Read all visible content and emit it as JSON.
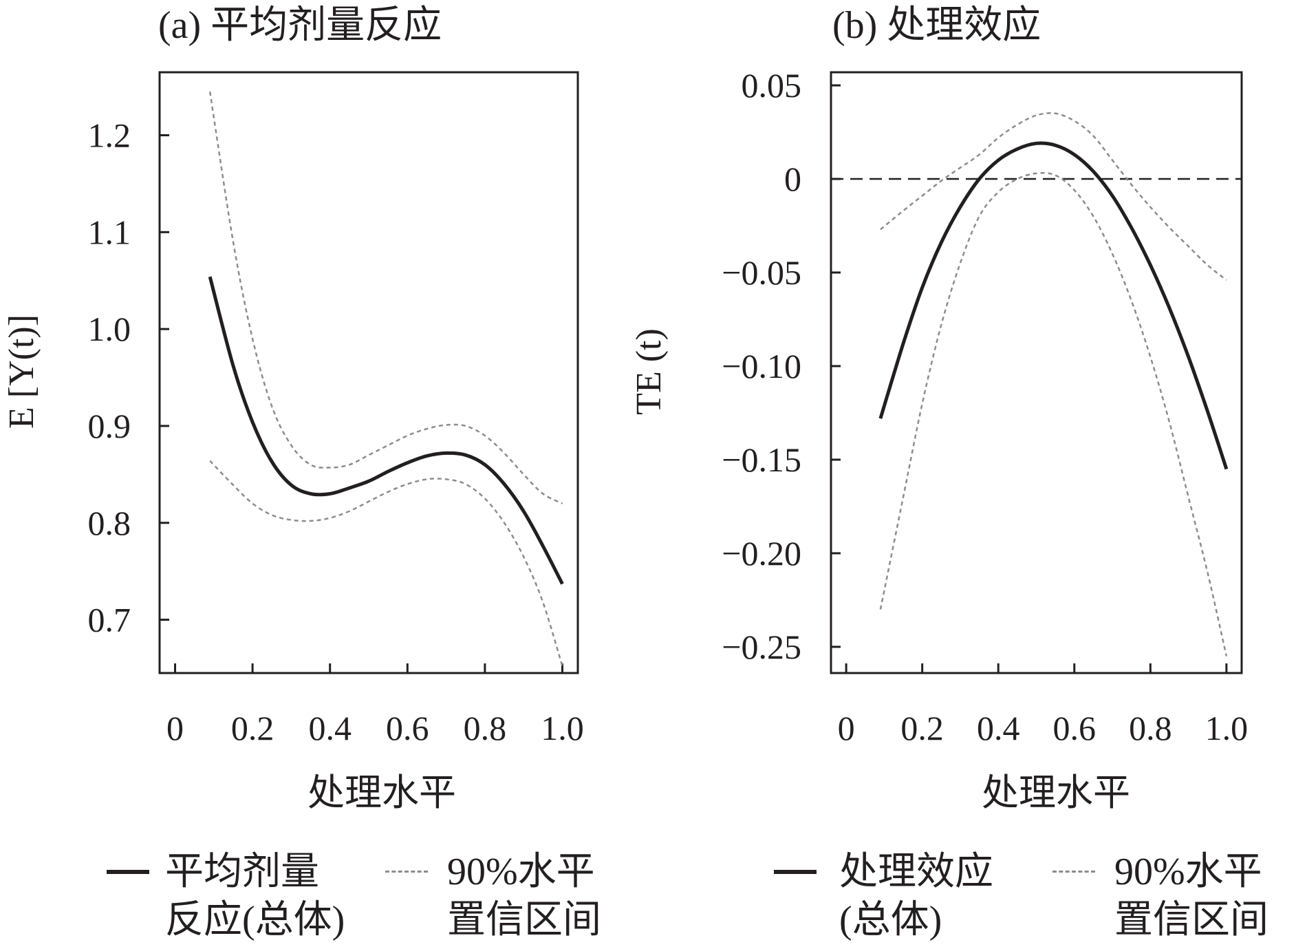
{
  "chart_data": [
    {
      "type": "line",
      "title": "(a) 平均剂量反应",
      "xlabel": "处理水平",
      "ylabel": "E [Y(t)]",
      "xlim": [
        -0.04,
        1.04
      ],
      "ylim": [
        0.645,
        1.265
      ],
      "xticks": [
        0,
        0.2,
        0.4,
        0.6,
        0.8,
        1.0
      ],
      "xtick_labels": [
        "0",
        "0.2",
        "0.4",
        "0.6",
        "0.8",
        "1.0"
      ],
      "yticks": [
        0.7,
        0.8,
        0.9,
        1.0,
        1.1,
        1.2
      ],
      "ytick_labels": [
        "0.7",
        "0.8",
        "0.9",
        "1.0",
        "1.1",
        "1.2"
      ],
      "grid": false,
      "legend_position": "bottom",
      "x": [
        0.09,
        0.15,
        0.2,
        0.25,
        0.3,
        0.35,
        0.4,
        0.45,
        0.5,
        0.55,
        0.6,
        0.65,
        0.7,
        0.75,
        0.8,
        0.85,
        0.9,
        0.95,
        1.0
      ],
      "series": [
        {
          "name": "平均剂量反应(总体)",
          "style": "solid",
          "values": [
            1.054,
            0.962,
            0.904,
            0.863,
            0.839,
            0.83,
            0.83,
            0.836,
            0.843,
            0.853,
            0.862,
            0.869,
            0.872,
            0.87,
            0.86,
            0.84,
            0.812,
            0.776,
            0.737
          ]
        },
        {
          "name": "90%水平置信区间",
          "style": "dashed",
          "values": [
            1.245,
            1.09,
            0.99,
            0.92,
            0.88,
            0.86,
            0.857,
            0.86,
            0.87,
            0.88,
            0.89,
            0.897,
            0.901,
            0.9,
            0.89,
            0.872,
            0.85,
            0.83,
            0.82
          ]
        },
        {
          "name": "90%水平置信区间",
          "style": "dashed",
          "values": [
            0.864,
            0.839,
            0.82,
            0.808,
            0.803,
            0.802,
            0.805,
            0.812,
            0.822,
            0.832,
            0.84,
            0.845,
            0.845,
            0.84,
            0.825,
            0.8,
            0.765,
            0.718,
            0.652
          ]
        }
      ]
    },
    {
      "type": "line",
      "title": "(b) 处理效应",
      "xlabel": "处理水平",
      "ylabel": "TE (t)",
      "xlim": [
        -0.04,
        1.04
      ],
      "ylim": [
        -0.264,
        0.057
      ],
      "xticks": [
        0,
        0.2,
        0.4,
        0.6,
        0.8,
        1.0
      ],
      "xtick_labels": [
        "0",
        "0.2",
        "0.4",
        "0.6",
        "0.8",
        "1.0"
      ],
      "yticks": [
        0.05,
        0,
        -0.05,
        -0.1,
        -0.15,
        -0.2,
        -0.25
      ],
      "ytick_labels": [
        "0.05",
        "0",
        "−0.05",
        "−0.10",
        "−0.15",
        "−0.20",
        "−0.25"
      ],
      "reference_line": 0,
      "grid": false,
      "legend_position": "bottom",
      "x": [
        0.09,
        0.15,
        0.2,
        0.25,
        0.3,
        0.35,
        0.4,
        0.45,
        0.5,
        0.55,
        0.6,
        0.65,
        0.7,
        0.75,
        0.8,
        0.85,
        0.9,
        0.95,
        1.0
      ],
      "series": [
        {
          "name": "处理效应(总体)",
          "style": "solid",
          "values": [
            -0.128,
            -0.088,
            -0.058,
            -0.034,
            -0.015,
            0.0,
            0.01,
            0.016,
            0.019,
            0.018,
            0.013,
            0.004,
            -0.009,
            -0.026,
            -0.046,
            -0.069,
            -0.095,
            -0.124,
            -0.155
          ]
        },
        {
          "name": "90%水平置信区间",
          "style": "dashed",
          "values": [
            -0.027,
            -0.017,
            -0.009,
            -0.001,
            0.006,
            0.013,
            0.022,
            0.029,
            0.034,
            0.035,
            0.031,
            0.023,
            0.01,
            -0.003,
            -0.015,
            -0.026,
            -0.036,
            -0.046,
            -0.054
          ]
        },
        {
          "name": "90%水平置信区间",
          "style": "dashed",
          "values": [
            -0.23,
            -0.17,
            -0.12,
            -0.078,
            -0.045,
            -0.02,
            -0.007,
            0.0,
            0.003,
            0.002,
            -0.006,
            -0.02,
            -0.04,
            -0.065,
            -0.095,
            -0.13,
            -0.17,
            -0.21,
            -0.255
          ]
        }
      ]
    }
  ],
  "legends": [
    {
      "solid_label": "平均剂量\n反应(总体)",
      "dash_label": "90%水平\n置信区间"
    },
    {
      "solid_label": "处理效应\n(总体)",
      "dash_label": "90%水平\n置信区间"
    }
  ],
  "colors": {
    "main_line": "#231f20",
    "ci_line": "#8c8c8c",
    "axis": "#231f20"
  }
}
